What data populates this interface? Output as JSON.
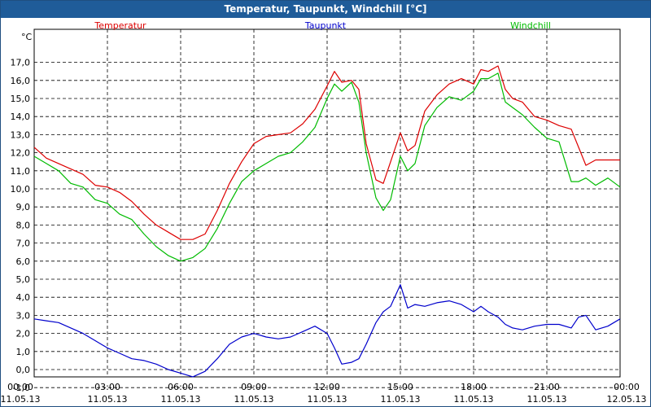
{
  "chart_data": {
    "type": "line",
    "title": "Temperatur, Taupunkt, Windchill [°C]",
    "ylabel": "°C",
    "ylim": [
      -1.0,
      17.5
    ],
    "yticks": [
      "-1,0",
      "0,0",
      "1,0",
      "2,0",
      "3,0",
      "4,0",
      "5,0",
      "6,0",
      "7,0",
      "8,0",
      "9,0",
      "10,0",
      "11,0",
      "12,0",
      "13,0",
      "14,0",
      "15,0",
      "16,0",
      "17,0"
    ],
    "ytick_values": [
      -1,
      0,
      1,
      2,
      3,
      4,
      5,
      6,
      7,
      8,
      9,
      10,
      11,
      12,
      13,
      14,
      15,
      16,
      17
    ],
    "xlim": [
      0,
      24
    ],
    "xticks": [
      {
        "h": 0,
        "time": "00:00",
        "date": "11.05.13"
      },
      {
        "h": 3,
        "time": "03:00",
        "date": "11.05.13"
      },
      {
        "h": 6,
        "time": "06:00",
        "date": "11.05.13"
      },
      {
        "h": 9,
        "time": "09:00",
        "date": "11.05.13"
      },
      {
        "h": 12,
        "time": "12:00",
        "date": "11.05.13"
      },
      {
        "h": 15,
        "time": "15:00",
        "date": "11.05.13"
      },
      {
        "h": 18,
        "time": "18:00",
        "date": "11.05.13"
      },
      {
        "h": 21,
        "time": "21:00",
        "date": "11.05.13"
      },
      {
        "h": 24,
        "time": "00:00",
        "date": "12.05.13"
      }
    ],
    "series": [
      {
        "name": "Temperatur",
        "color": "#dd0000",
        "x": [
          0,
          0.5,
          1,
          1.5,
          2,
          2.5,
          3,
          3.5,
          4,
          4.5,
          5,
          5.5,
          6,
          6.5,
          7,
          7.5,
          8,
          8.5,
          9,
          9.5,
          10,
          10.5,
          11,
          11.5,
          12,
          12.3,
          12.6,
          13,
          13.3,
          13.6,
          14,
          14.3,
          14.6,
          15,
          15.3,
          15.6,
          16,
          16.5,
          17,
          17.5,
          18,
          18.3,
          18.6,
          19,
          19.3,
          19.6,
          20,
          20.5,
          21,
          21.5,
          22,
          22.3,
          22.6,
          23,
          23.5,
          24
        ],
        "values": [
          12.3,
          11.7,
          11.4,
          11.1,
          10.8,
          10.2,
          10.1,
          9.8,
          9.3,
          8.6,
          8.0,
          7.6,
          7.2,
          7.2,
          7.5,
          8.8,
          10.3,
          11.5,
          12.5,
          12.9,
          13.0,
          13.1,
          13.6,
          14.4,
          15.7,
          16.5,
          15.9,
          16.0,
          15.5,
          12.5,
          10.5,
          10.3,
          11.5,
          13.1,
          12.1,
          12.4,
          14.3,
          15.2,
          15.8,
          16.1,
          15.8,
          16.6,
          16.5,
          16.8,
          15.5,
          15.0,
          14.8,
          14.0,
          13.8,
          13.5,
          13.3,
          12.3,
          11.3,
          11.6,
          11.6,
          11.6
        ]
      },
      {
        "name": "Taupunkt",
        "color": "#0000cc",
        "x": [
          0,
          0.5,
          1,
          1.5,
          2,
          2.5,
          3,
          3.5,
          4,
          4.5,
          5,
          5.5,
          6,
          6.5,
          7,
          7.5,
          8,
          8.5,
          9,
          9.5,
          10,
          10.5,
          11,
          11.5,
          12,
          12.3,
          12.6,
          13,
          13.3,
          13.6,
          14,
          14.3,
          14.6,
          15,
          15.3,
          15.6,
          16,
          16.5,
          17,
          17.5,
          18,
          18.3,
          18.6,
          19,
          19.3,
          19.6,
          20,
          20.5,
          21,
          21.5,
          22,
          22.3,
          22.6,
          23,
          23.5,
          24
        ],
        "values": [
          2.8,
          2.7,
          2.6,
          2.3,
          2.0,
          1.6,
          1.2,
          0.9,
          0.6,
          0.5,
          0.3,
          0.0,
          -0.2,
          -0.4,
          -0.1,
          0.6,
          1.4,
          1.8,
          2.0,
          1.8,
          1.7,
          1.8,
          2.1,
          2.4,
          2.0,
          1.2,
          0.3,
          0.4,
          0.6,
          1.4,
          2.6,
          3.2,
          3.5,
          4.7,
          3.4,
          3.6,
          3.5,
          3.7,
          3.8,
          3.6,
          3.2,
          3.5,
          3.2,
          2.9,
          2.5,
          2.3,
          2.2,
          2.4,
          2.5,
          2.5,
          2.3,
          2.9,
          3.0,
          2.2,
          2.4,
          2.8
        ]
      },
      {
        "name": "Windchill",
        "color": "#00bb00",
        "x": [
          0,
          0.5,
          1,
          1.5,
          2,
          2.5,
          3,
          3.5,
          4,
          4.5,
          5,
          5.5,
          6,
          6.5,
          7,
          7.5,
          8,
          8.5,
          9,
          9.5,
          10,
          10.5,
          11,
          11.5,
          12,
          12.3,
          12.6,
          13,
          13.3,
          13.6,
          14,
          14.3,
          14.6,
          15,
          15.3,
          15.6,
          16,
          16.5,
          17,
          17.5,
          18,
          18.3,
          18.6,
          19,
          19.3,
          19.6,
          20,
          20.5,
          21,
          21.5,
          22,
          22.3,
          22.6,
          23,
          23.5,
          24
        ],
        "values": [
          11.8,
          11.4,
          11.0,
          10.3,
          10.1,
          9.4,
          9.2,
          8.6,
          8.3,
          7.5,
          6.8,
          6.3,
          6.0,
          6.2,
          6.7,
          7.8,
          9.2,
          10.4,
          11.0,
          11.4,
          11.8,
          12.0,
          12.6,
          13.4,
          15.0,
          15.8,
          15.4,
          15.9,
          14.8,
          12.0,
          9.5,
          8.8,
          9.4,
          11.8,
          11.0,
          11.4,
          13.5,
          14.5,
          15.1,
          14.9,
          15.4,
          16.1,
          16.1,
          16.4,
          14.8,
          14.5,
          14.1,
          13.4,
          12.8,
          12.6,
          10.4,
          10.4,
          10.6,
          10.2,
          10.6,
          10.1
        ]
      }
    ]
  }
}
